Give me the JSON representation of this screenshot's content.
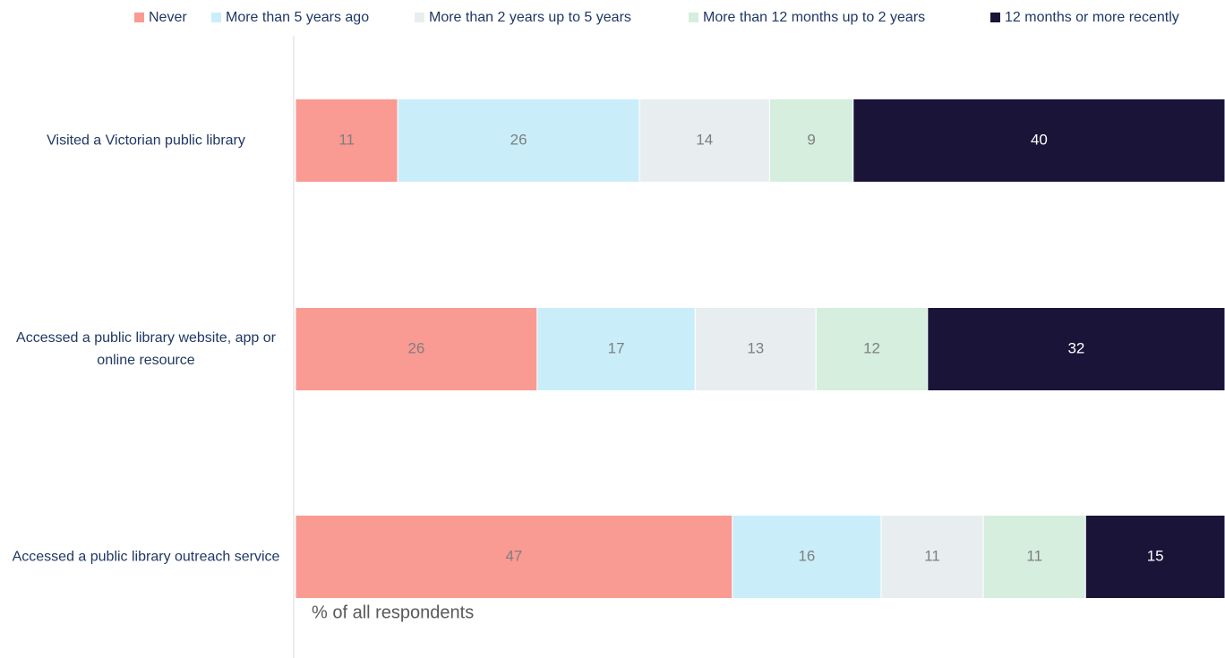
{
  "chart_data": {
    "type": "stacked-barh",
    "categories": [
      "Visited a Victorian public library",
      "Accessed a public library website, app or online resource",
      "Accessed a public library outreach service"
    ],
    "series": [
      {
        "name": "Never",
        "color": "#f99a93",
        "values": [
          11,
          26,
          47
        ]
      },
      {
        "name": "More than 5 years ago",
        "color": "#c9eefa",
        "values": [
          26,
          17,
          16
        ]
      },
      {
        "name": "More than 2 years up to 5 years",
        "color": "#e8eef0",
        "values": [
          14,
          13,
          11
        ]
      },
      {
        "name": "More than 12 months up to 2 years",
        "color": "#d5eedd",
        "values": [
          9,
          12,
          11
        ]
      },
      {
        "name": "12 months or more recently",
        "color": "#1a1439",
        "values": [
          40,
          32,
          15
        ]
      }
    ],
    "xlabel": "% of all respondents",
    "legend": "top"
  }
}
